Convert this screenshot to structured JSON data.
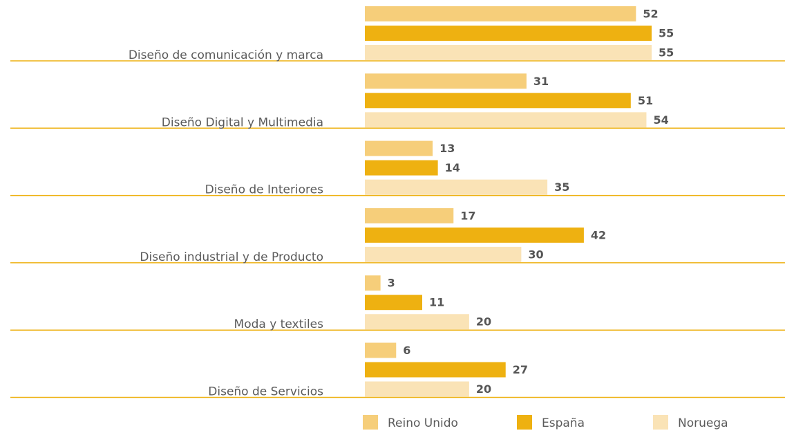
{
  "chart_data": {
    "type": "bar",
    "orientation": "horizontal",
    "categories": [
      "Diseño de comunicación y marca",
      "Diseño Digital y Multimedia",
      "Diseño de Interiores",
      "Diseño industrial y de Producto",
      "Moda y textiles",
      "Diseño de Servicios"
    ],
    "series": [
      {
        "name": "Reino Unido",
        "color": "#f6ce7a",
        "values": [
          52,
          31,
          13,
          17,
          3,
          6
        ]
      },
      {
        "name": "España",
        "color": "#eeb111",
        "values": [
          55,
          51,
          14,
          42,
          11,
          27
        ]
      },
      {
        "name": "Noruega",
        "color": "#fae3b6",
        "values": [
          55,
          54,
          35,
          30,
          20,
          20
        ]
      }
    ],
    "xlim": [
      0,
      55
    ],
    "legend": "bottom"
  }
}
